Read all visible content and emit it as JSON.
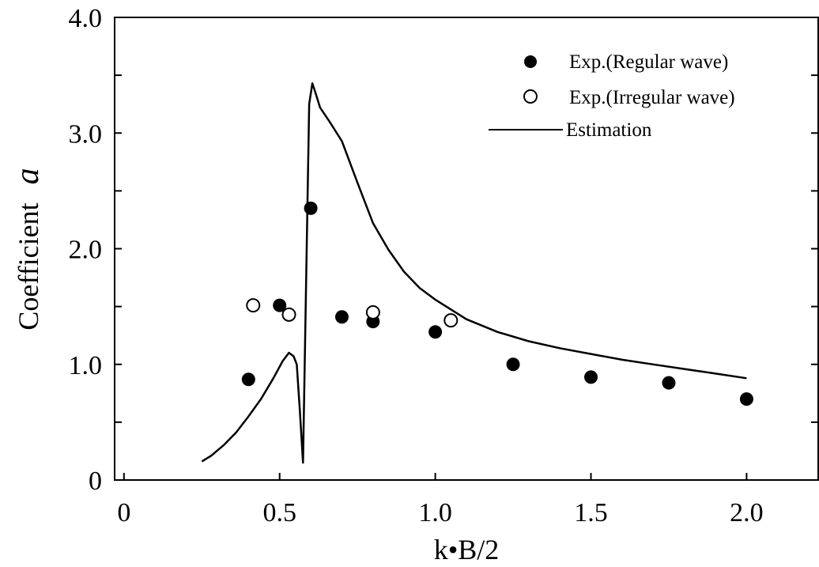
{
  "chart_data": {
    "type": "scatter",
    "xlabel": "k•B/2",
    "ylabel_prefix": "Coefficient",
    "ylabel_symbol": "a",
    "xlim": [
      -0.03,
      2.23
    ],
    "ylim": [
      0,
      4.0
    ],
    "x_ticks": [
      0,
      0.5,
      1.0,
      1.5,
      2.0
    ],
    "x_tick_labels": [
      "0",
      "0.5",
      "1.0",
      "1.5",
      "2.0"
    ],
    "y_ticks": [
      0,
      1.0,
      2.0,
      3.0,
      4.0
    ],
    "y_tick_labels": [
      "0",
      "1.0",
      "2.0",
      "3.0",
      "4.0"
    ],
    "y_minor_ticks": [
      0.5,
      1.5,
      2.5,
      3.5
    ],
    "grid": false,
    "legend_position": "top-right",
    "series": [
      {
        "name": "Exp.(Regular wave)",
        "kind": "scatter",
        "marker": "filled-circle",
        "x": [
          0.4,
          0.5,
          0.6,
          0.7,
          0.8,
          1.0,
          1.25,
          1.5,
          1.75,
          2.0
        ],
        "y": [
          0.87,
          1.51,
          2.35,
          1.41,
          1.37,
          1.28,
          1.0,
          0.89,
          0.84,
          0.7
        ]
      },
      {
        "name": "Exp.(Irregular wave)",
        "kind": "scatter",
        "marker": "open-circle",
        "x": [
          0.415,
          0.53,
          0.8,
          1.05
        ],
        "y": [
          1.51,
          1.43,
          1.45,
          1.38
        ]
      },
      {
        "name": "Estimation",
        "kind": "line",
        "x": [
          0.25,
          0.28,
          0.32,
          0.36,
          0.4,
          0.44,
          0.48,
          0.51,
          0.53,
          0.545,
          0.555,
          0.565,
          0.575,
          0.595,
          0.605,
          0.615,
          0.63,
          0.66,
          0.7,
          0.75,
          0.8,
          0.85,
          0.9,
          0.95,
          1.0,
          1.1,
          1.2,
          1.3,
          1.4,
          1.5,
          1.6,
          1.7,
          1.8,
          1.9,
          2.0
        ],
        "y": [
          0.16,
          0.21,
          0.3,
          0.41,
          0.55,
          0.7,
          0.88,
          1.03,
          1.1,
          1.07,
          1.0,
          0.6,
          0.15,
          3.25,
          3.43,
          3.35,
          3.22,
          3.1,
          2.93,
          2.57,
          2.22,
          1.99,
          1.8,
          1.66,
          1.56,
          1.39,
          1.28,
          1.2,
          1.14,
          1.09,
          1.04,
          1.0,
          0.96,
          0.92,
          0.88
        ]
      }
    ]
  }
}
